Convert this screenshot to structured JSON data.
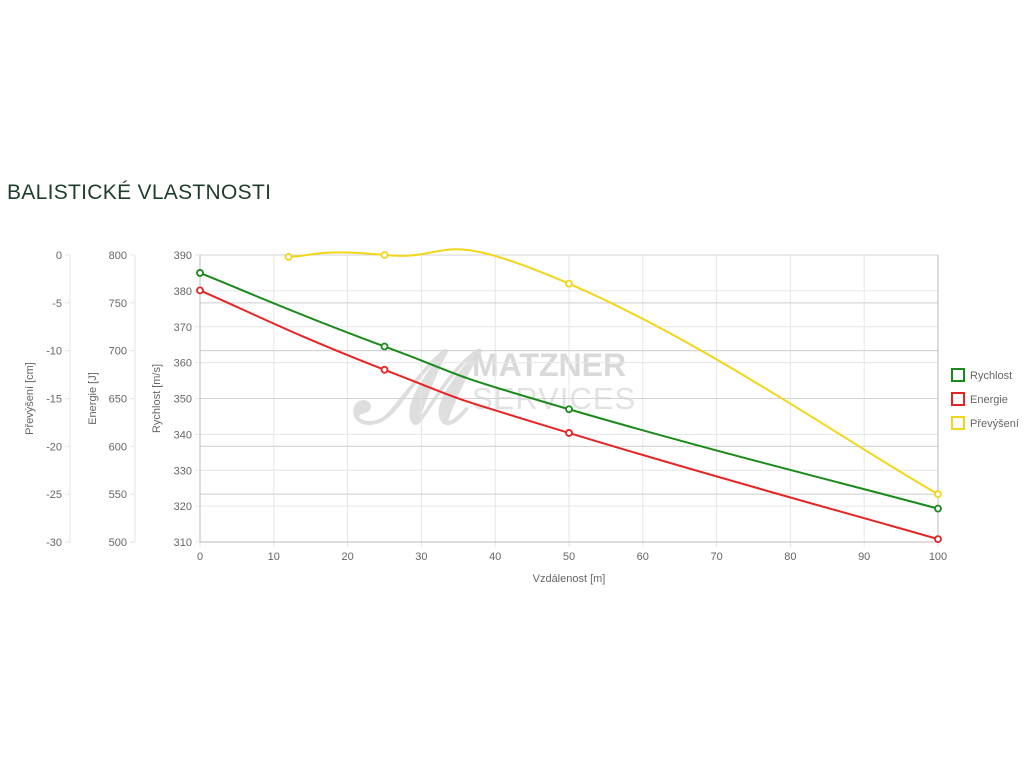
{
  "page": {
    "title": "BALISTICKÉ VLASTNOSTI"
  },
  "watermark": {
    "line1": "MATZNER",
    "line2": "SERVICES"
  },
  "colors": {
    "rychlost": "#1a8a1a",
    "energie": "#e62424",
    "prevyseni": "#f2d61a",
    "grid": "#e6e6e6",
    "axis": "#bbbbbb",
    "text": "#666666",
    "title": "#1f3d2c"
  },
  "chart_data": {
    "type": "line",
    "xlabel": "Vzdálenost [m]",
    "xlim": [
      0,
      100
    ],
    "x_ticks": [
      "0",
      "10",
      "20",
      "30",
      "40",
      "50",
      "60",
      "70",
      "80",
      "90",
      "100"
    ],
    "y_axes": [
      {
        "id": "prevyseni",
        "label": "Převýšení [cm]",
        "lim": [
          -30,
          0
        ],
        "ticks": [
          "0",
          "-5",
          "-10",
          "-15",
          "-20",
          "-25",
          "-30"
        ]
      },
      {
        "id": "energie",
        "label": "Energie [J]",
        "lim": [
          500,
          800
        ],
        "ticks": [
          "800",
          "750",
          "700",
          "650",
          "600",
          "550",
          "500"
        ]
      },
      {
        "id": "rychlost",
        "label": "Rychlost [m/s]",
        "lim": [
          310,
          390
        ],
        "ticks": [
          "390",
          "380",
          "370",
          "360",
          "350",
          "340",
          "330",
          "320",
          "310"
        ]
      }
    ],
    "grid": true,
    "legend": "right",
    "series": [
      {
        "name": "Rychlost",
        "axis": "rychlost",
        "color": "#1a8a1a",
        "x": [
          0,
          25,
          50,
          100
        ],
        "y": [
          385,
          364.5,
          347,
          319.3
        ]
      },
      {
        "name": "Energie",
        "axis": "energie",
        "color": "#e62424",
        "x": [
          0,
          25,
          50,
          100
        ],
        "y": [
          763,
          680,
          614,
          503
        ]
      },
      {
        "name": "Převýšení",
        "axis": "prevyseni",
        "color": "#f2d61a",
        "x": [
          12,
          25,
          50,
          100
        ],
        "y": [
          -0.2,
          0,
          -3,
          -25
        ]
      }
    ]
  }
}
